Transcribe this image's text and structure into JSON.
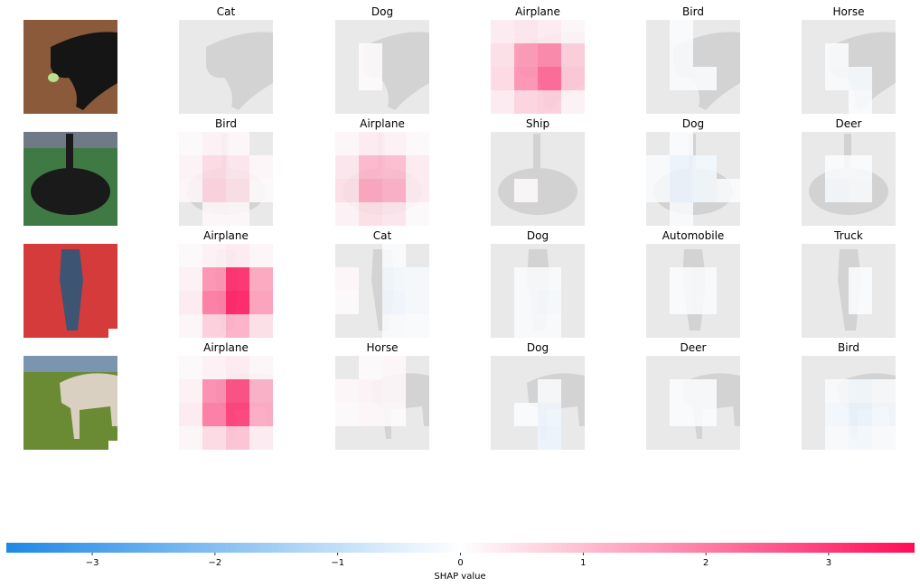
{
  "chart_data": {
    "type": "heatmap",
    "description_kind": "SHAP image explanations",
    "rows": [
      {
        "input": {
          "kind": "dog-on-floor",
          "bg": "#8a5a3a",
          "fg": "#151515",
          "accent": "#b9e08a"
        },
        "panels": [
          {
            "label": "Cat",
            "grid": [
              [
                0,
                0,
                0,
                0
              ],
              [
                0,
                0,
                0,
                0
              ],
              [
                0,
                0,
                0,
                0
              ],
              [
                0,
                0,
                0,
                0
              ]
            ]
          },
          {
            "label": "Dog",
            "grid": [
              [
                0,
                0,
                0,
                0
              ],
              [
                0,
                0.05,
                0,
                0
              ],
              [
                0,
                0.05,
                0,
                0
              ],
              [
                0,
                0,
                0,
                0
              ]
            ]
          },
          {
            "label": "Airplane",
            "grid": [
              [
                0.3,
                0.4,
                0.3,
                0.1
              ],
              [
                0.5,
                1.7,
                2.0,
                0.8
              ],
              [
                0.6,
                1.8,
                2.5,
                0.9
              ],
              [
                0.3,
                0.7,
                0.8,
                0.2
              ]
            ]
          },
          {
            "label": "Bird",
            "grid": [
              [
                0,
                -0.05,
                0,
                0
              ],
              [
                0,
                -0.1,
                0,
                0
              ],
              [
                0,
                -0.1,
                -0.05,
                0
              ],
              [
                0,
                0,
                0,
                0
              ]
            ]
          },
          {
            "label": "Horse",
            "grid": [
              [
                0,
                0,
                0,
                0
              ],
              [
                0,
                -0.05,
                0,
                0
              ],
              [
                0,
                -0.1,
                -0.15,
                0
              ],
              [
                0,
                0,
                -0.05,
                0
              ]
            ]
          }
        ]
      },
      {
        "input": {
          "kind": "ostrich",
          "bg": "#3f7a45",
          "fg": "#1a1a1a",
          "accent": "#c9b9a3"
        },
        "panels": [
          {
            "label": "Bird",
            "grid": [
              [
                0.05,
                0.2,
                0.1,
                0
              ],
              [
                0.15,
                0.6,
                0.4,
                0.1
              ],
              [
                0.1,
                0.7,
                0.5,
                0.05
              ],
              [
                0,
                0.1,
                0.1,
                0
              ]
            ]
          },
          {
            "label": "Airplane",
            "grid": [
              [
                0.1,
                0.3,
                0.2,
                0.05
              ],
              [
                0.4,
                1.2,
                1.1,
                0.3
              ],
              [
                0.5,
                1.5,
                1.3,
                0.3
              ],
              [
                0.2,
                0.5,
                0.4,
                0.05
              ]
            ]
          },
          {
            "label": "Ship",
            "grid": [
              [
                0,
                0,
                0,
                0
              ],
              [
                0,
                0,
                0,
                0
              ],
              [
                0,
                0.05,
                0,
                0
              ],
              [
                0,
                0,
                0,
                0
              ]
            ]
          },
          {
            "label": "Dog",
            "grid": [
              [
                0,
                -0.05,
                0,
                0
              ],
              [
                -0.1,
                -0.3,
                -0.2,
                0
              ],
              [
                -0.1,
                -0.3,
                -0.2,
                -0.05
              ],
              [
                0,
                -0.1,
                0,
                0
              ]
            ]
          },
          {
            "label": "Deer",
            "grid": [
              [
                0,
                0,
                0,
                0
              ],
              [
                0,
                -0.05,
                -0.05,
                0
              ],
              [
                0,
                -0.15,
                -0.1,
                0
              ],
              [
                0,
                0,
                0,
                0
              ]
            ]
          }
        ]
      },
      {
        "input": {
          "kind": "frog-on-red",
          "bg": "#d63b3b",
          "fg": "#3d5573",
          "accent": "#7f93ad"
        },
        "panels": [
          {
            "label": "Airplane",
            "grid": [
              [
                0.05,
                0.2,
                0.3,
                0.1
              ],
              [
                0.2,
                1.8,
                3.5,
                1.5
              ],
              [
                0.3,
                2.2,
                3.7,
                1.6
              ],
              [
                0.1,
                0.8,
                1.3,
                0.5
              ]
            ]
          },
          {
            "label": "Cat",
            "grid": [
              [
                0,
                0,
                -0.05,
                0
              ],
              [
                0.1,
                0,
                -0.2,
                -0.15
              ],
              [
                0.05,
                0,
                -0.25,
                -0.15
              ],
              [
                0,
                0,
                -0.1,
                -0.05
              ]
            ]
          },
          {
            "label": "Dog",
            "grid": [
              [
                0,
                0,
                0,
                0
              ],
              [
                0,
                -0.1,
                -0.1,
                0
              ],
              [
                0,
                -0.1,
                -0.15,
                0
              ],
              [
                0,
                -0.1,
                -0.1,
                0
              ]
            ]
          },
          {
            "label": "Automobile",
            "grid": [
              [
                0,
                0,
                0,
                0
              ],
              [
                0,
                -0.05,
                -0.1,
                0
              ],
              [
                0,
                -0.05,
                -0.1,
                0
              ],
              [
                0,
                0,
                0,
                0
              ]
            ]
          },
          {
            "label": "Truck",
            "grid": [
              [
                0,
                0,
                0,
                0
              ],
              [
                0,
                0,
                -0.05,
                0
              ],
              [
                0,
                0,
                -0.05,
                0
              ],
              [
                0,
                0,
                0,
                0
              ]
            ]
          }
        ]
      },
      {
        "input": {
          "kind": "horse-in-field",
          "bg": "#6a8a34",
          "fg": "#d9d0c2",
          "accent": "#3b4a2a"
        },
        "panels": [
          {
            "label": "Airplane",
            "grid": [
              [
                0.05,
                0.2,
                0.3,
                0.1
              ],
              [
                0.2,
                1.9,
                3.0,
                1.3
              ],
              [
                0.3,
                2.2,
                3.2,
                1.4
              ],
              [
                0.1,
                0.6,
                1.0,
                0.3
              ]
            ]
          },
          {
            "label": "Horse",
            "grid": [
              [
                0,
                0.05,
                0.1,
                0
              ],
              [
                0.1,
                0.15,
                0.1,
                0
              ],
              [
                0.05,
                0.1,
                0.05,
                0
              ],
              [
                0,
                0,
                0,
                0
              ]
            ]
          },
          {
            "label": "Dog",
            "grid": [
              [
                0,
                0,
                0,
                0
              ],
              [
                0,
                0,
                -0.1,
                0
              ],
              [
                0,
                -0.05,
                -0.25,
                0
              ],
              [
                0,
                0,
                -0.3,
                0
              ]
            ]
          },
          {
            "label": "Deer",
            "grid": [
              [
                0,
                0,
                0,
                0
              ],
              [
                0,
                -0.05,
                -0.05,
                0
              ],
              [
                0,
                -0.05,
                -0.05,
                0
              ],
              [
                0,
                0,
                0,
                0
              ]
            ]
          },
          {
            "label": "Bird",
            "grid": [
              [
                0,
                0,
                0,
                0
              ],
              [
                0,
                -0.1,
                -0.2,
                -0.1
              ],
              [
                0,
                -0.2,
                -0.35,
                -0.2
              ],
              [
                0,
                -0.1,
                -0.2,
                -0.1
              ]
            ]
          }
        ]
      }
    ],
    "colorbar": {
      "label": "SHAP value",
      "range": [
        -3.7,
        3.7
      ],
      "ticks": [
        -3,
        -2,
        -1,
        0,
        1,
        2,
        3
      ],
      "tick_labels": [
        "−3",
        "−2",
        "−1",
        "0",
        "1",
        "2",
        "3"
      ],
      "negative_color": "#1e88e5",
      "positive_color": "#ff0d57",
      "mid_color": "#ffffff"
    }
  }
}
